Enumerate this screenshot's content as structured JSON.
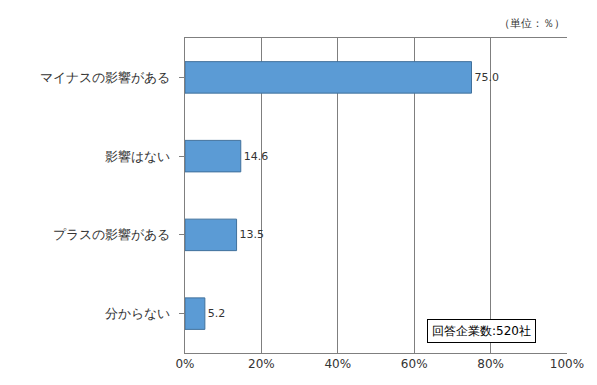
{
  "chart_data": {
    "type": "bar",
    "orientation": "horizontal",
    "categories": [
      "マイナスの影響がある",
      "影響はない",
      "プラスの影響がある",
      "分からない"
    ],
    "values": [
      75.0,
      14.6,
      13.5,
      5.2
    ],
    "value_labels": [
      "75.0",
      "14.6",
      "13.5",
      "5.2"
    ],
    "data_labels": true,
    "color": "#5b9bd5",
    "xlim": [
      0,
      100
    ],
    "xticks": [
      {
        "value": 0,
        "label": "0%"
      },
      {
        "value": 20,
        "label": "20%"
      },
      {
        "value": 40,
        "label": "40%"
      },
      {
        "value": 60,
        "label": "60%"
      },
      {
        "value": 80,
        "label": "80%"
      },
      {
        "value": 100,
        "label": "100%"
      }
    ],
    "grid": true,
    "annotations": [
      "（単位：％）",
      "回答企業数:520社"
    ]
  }
}
